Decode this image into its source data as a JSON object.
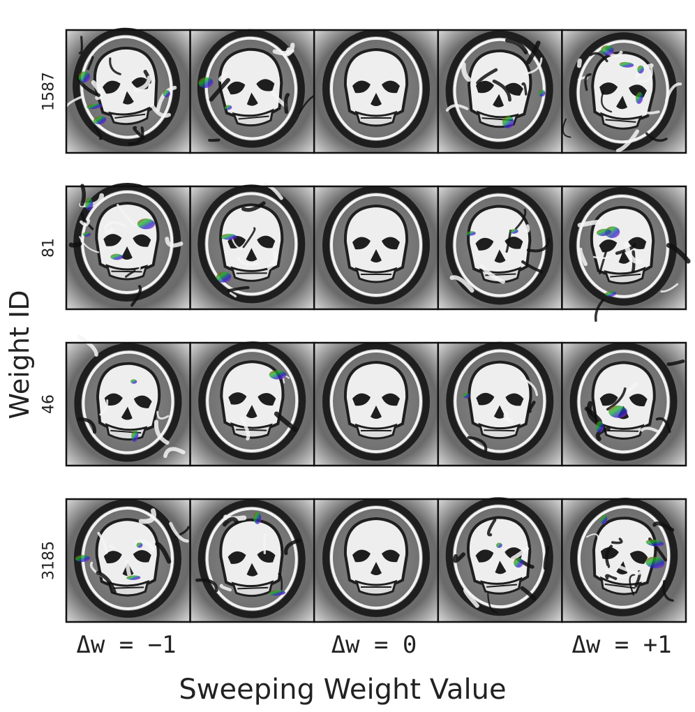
{
  "figure": {
    "y_title": "Weight ID",
    "x_title": "Sweeping Weight Value",
    "rows": [
      {
        "weight_id": "1587",
        "distortions": [
          0.95,
          0.55,
          0.0,
          0.6,
          0.9
        ]
      },
      {
        "weight_id": "81",
        "distortions": [
          0.9,
          0.6,
          0.0,
          0.5,
          0.7
        ]
      },
      {
        "weight_id": "46",
        "distortions": [
          0.45,
          0.2,
          0.0,
          0.3,
          0.55
        ]
      },
      {
        "weight_id": "3185",
        "distortions": [
          0.7,
          0.5,
          0.0,
          0.55,
          0.75
        ]
      }
    ],
    "column_ticks": [
      {
        "label": "Δw = −1",
        "column": 0
      },
      {
        "label": "Δw = 0",
        "column": 2
      },
      {
        "label": "Δw = +1",
        "column": 4
      }
    ],
    "colors": {
      "panel_border": "#111111",
      "face_light": "#f2f2f2",
      "face_dark": "#1e1e1e",
      "background_gray": "#7a7a7a"
    },
    "icon": "skull-image"
  }
}
